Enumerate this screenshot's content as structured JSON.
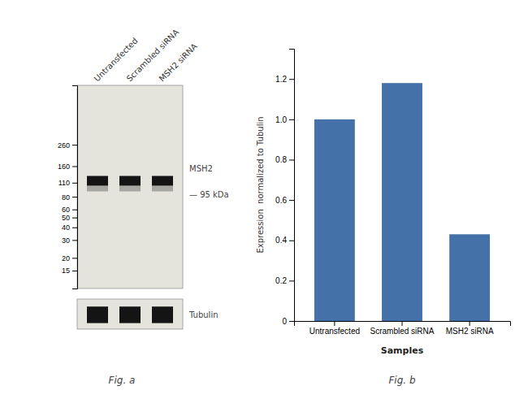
{
  "chart_data": [
    {
      "type": "blot",
      "title": "Fig. a",
      "categories": [
        "Untransfected",
        "Scrambled siRNA",
        "MSH2 siRNA"
      ],
      "log": "y",
      "ylim": [
        10,
        1000
      ],
      "yticks": [
        260,
        160,
        110,
        80,
        60,
        50,
        40,
        30,
        20,
        15
      ],
      "annotations": [
        "MSH2",
        "— 95 kDa",
        "Tubulin"
      ]
    },
    {
      "type": "bar",
      "title": "Fig. b",
      "categories": [
        "Untransfected",
        "Scrambled siRNA",
        "MSH2 siRNA"
      ],
      "values": [
        1.0,
        1.18,
        0.43
      ],
      "color": "#4472a8",
      "xlabel": "Samples",
      "ylabel": "Expression  normalized to Tubulin",
      "ylim": [
        0,
        1.35
      ],
      "yticks": [
        0,
        0.2,
        0.4,
        0.6,
        0.8,
        {
          "value": 1.0,
          "label": "1.0"
        },
        1.2
      ]
    }
  ]
}
